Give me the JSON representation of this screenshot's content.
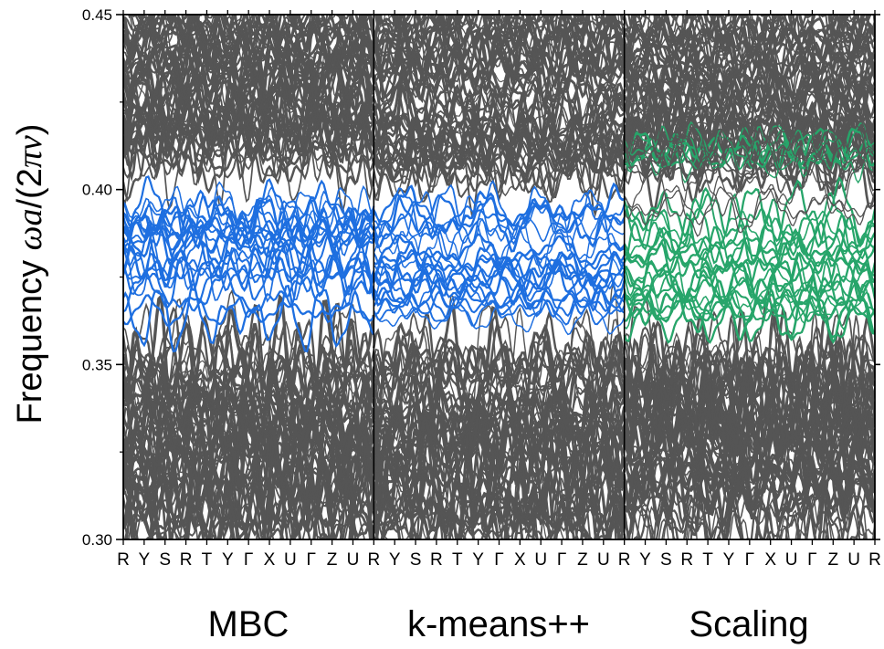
{
  "chart_data": {
    "type": "line",
    "ylabel": "Frequency ωa/(2πν)",
    "ylabel_parts": {
      "prefix": "Frequency ",
      "omega": "ω",
      "a": "a",
      "rest": "/(2",
      "pi": "π",
      "nu": "ν",
      "close": ")"
    },
    "ylim": [
      0.3,
      0.45
    ],
    "yticks": [
      0.3,
      0.35,
      0.4,
      0.45
    ],
    "ytick_labels": [
      "0.30",
      "0.35",
      "0.40",
      "0.45"
    ],
    "kpoints": [
      "R",
      "Y",
      "S",
      "R",
      "T",
      "Y",
      "Γ",
      "X",
      "U",
      "Γ",
      "Z",
      "U",
      "R"
    ],
    "panels": [
      "MBC",
      "k-means++",
      "Scaling"
    ],
    "series": [
      {
        "role": "background",
        "color": "#555555"
      },
      {
        "role": "highlight",
        "panel": "MBC",
        "color": "#1e6fe0",
        "range": [
          0.357,
          0.4
        ]
      },
      {
        "role": "highlight",
        "panel": "k-means++",
        "color": "#1e6fe0",
        "range": [
          0.357,
          0.403
        ]
      },
      {
        "role": "highlight",
        "panel": "Scaling",
        "color": "#27a56a",
        "range": [
          0.357,
          0.418
        ]
      }
    ],
    "grid": false
  }
}
